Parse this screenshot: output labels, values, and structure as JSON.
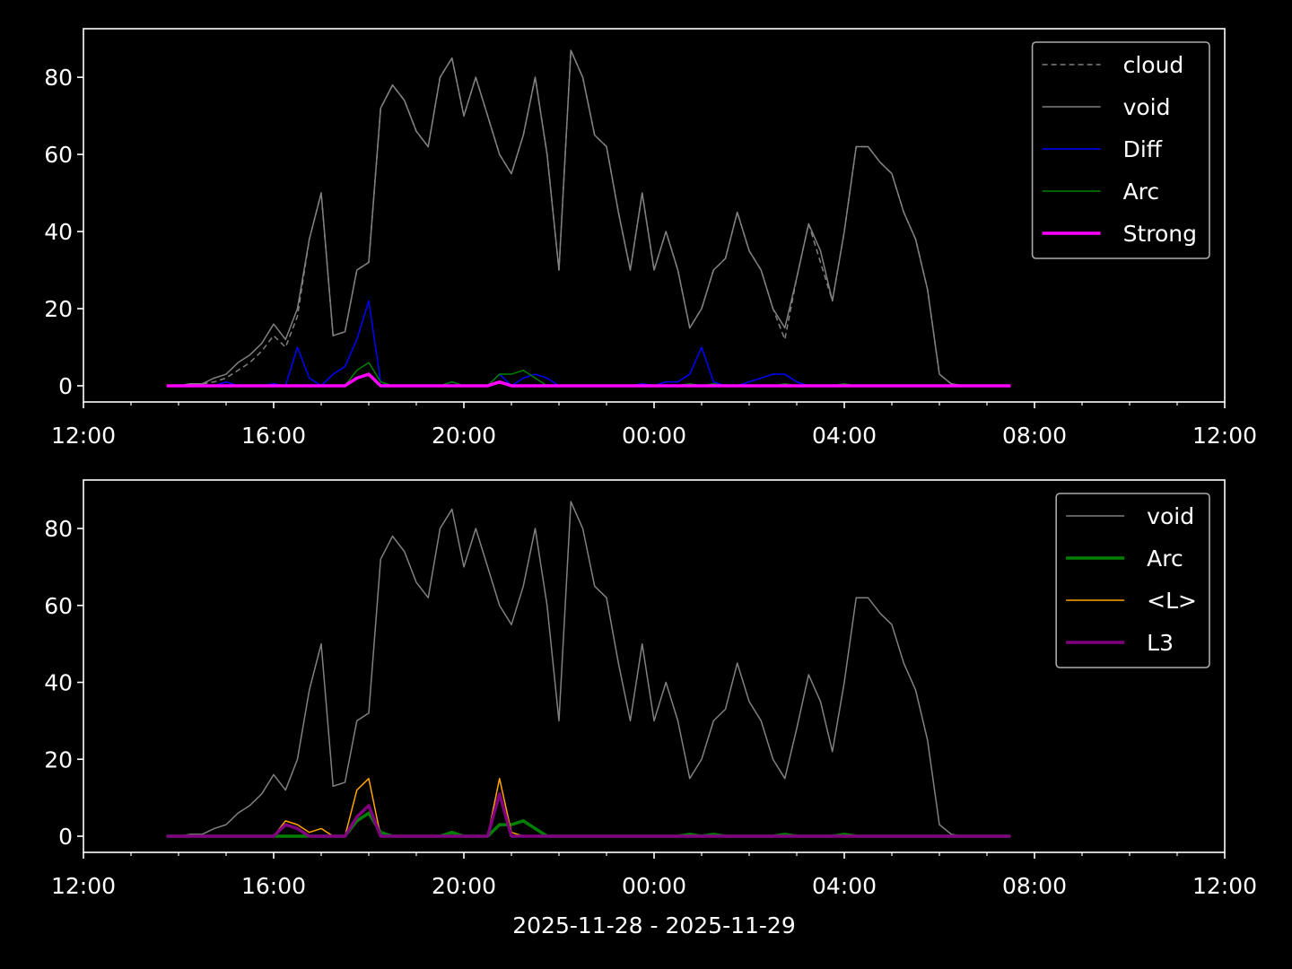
{
  "chart_data": [
    {
      "type": "line",
      "x": [
        1.75,
        2,
        2.25,
        2.5,
        2.75,
        3,
        3.25,
        3.5,
        3.75,
        4,
        4.25,
        4.5,
        4.75,
        5,
        5.25,
        5.5,
        5.75,
        6,
        6.25,
        6.5,
        6.75,
        7,
        7.25,
        7.5,
        7.75,
        8,
        8.25,
        8.5,
        8.75,
        9,
        9.25,
        9.5,
        9.75,
        10,
        10.25,
        10.5,
        10.75,
        11,
        11.25,
        11.5,
        11.75,
        12,
        12.25,
        12.5,
        12.75,
        13,
        13.25,
        13.5,
        13.75,
        14,
        14.25,
        14.5,
        14.75,
        15,
        15.25,
        15.5,
        15.75,
        16,
        16.25,
        16.5,
        16.75,
        17,
        17.25,
        17.5,
        17.75,
        18,
        18.25,
        18.5,
        18.75,
        19,
        19.25,
        19.5
      ],
      "xlim": [
        0,
        24
      ],
      "xticks": [
        {
          "value": 0,
          "label": "12:00"
        },
        {
          "value": 4,
          "label": "16:00"
        },
        {
          "value": 8,
          "label": "20:00"
        },
        {
          "value": 12,
          "label": "00:00"
        },
        {
          "value": 16,
          "label": "04:00"
        },
        {
          "value": 20,
          "label": "08:00"
        },
        {
          "value": 24,
          "label": "12:00"
        }
      ],
      "xminorticks": [
        1,
        2,
        3,
        5,
        6,
        7,
        9,
        10,
        11,
        13,
        14,
        15,
        17,
        18,
        19,
        21,
        22,
        23
      ],
      "ylim": [
        -4.2,
        92.6
      ],
      "yticks": [
        0,
        20,
        40,
        60,
        80
      ],
      "legend": "upper right",
      "series": [
        {
          "name": "cloud",
          "color": "#808080",
          "style": "dashed",
          "linewidth": 1.5,
          "values": [
            0,
            0,
            0.5,
            0.5,
            1,
            2,
            4,
            6,
            9,
            13,
            10,
            18,
            38,
            50,
            13,
            14,
            30,
            32,
            72,
            78,
            74,
            66,
            62,
            80,
            85,
            70,
            80,
            70,
            60,
            55,
            65,
            80,
            60,
            30,
            87,
            80,
            65,
            62,
            45,
            30,
            50,
            30,
            40,
            30,
            15,
            20,
            30,
            33,
            45,
            35,
            30,
            20,
            12,
            28,
            42,
            32,
            22,
            40,
            62,
            62,
            58,
            55,
            45,
            38,
            25,
            3,
            0.5,
            0,
            0,
            0,
            0,
            0
          ]
        },
        {
          "name": "void",
          "color": "#808080",
          "style": "solid",
          "linewidth": 1.5,
          "values": [
            0,
            0,
            0.5,
            0.5,
            2,
            3,
            6,
            8,
            11,
            16,
            12,
            20,
            38,
            50,
            13,
            14,
            30,
            32,
            72,
            78,
            74,
            66,
            62,
            80,
            85,
            70,
            80,
            70,
            60,
            55,
            65,
            80,
            60,
            30,
            87,
            80,
            65,
            62,
            45,
            30,
            50,
            30,
            40,
            30,
            15,
            20,
            30,
            33,
            45,
            35,
            30,
            20,
            15,
            28,
            42,
            35,
            22,
            40,
            62,
            62,
            58,
            55,
            45,
            38,
            25,
            3,
            0.5,
            0,
            0,
            0,
            0,
            0
          ]
        },
        {
          "name": "Diff",
          "color": "#0000ff",
          "style": "solid",
          "linewidth": 1.5,
          "values": [
            0,
            0,
            0,
            0,
            0,
            1,
            0,
            0,
            0,
            0.5,
            0,
            10,
            2,
            0,
            3,
            5,
            12,
            22,
            1,
            0,
            0,
            0,
            0,
            0,
            1,
            0,
            0,
            0,
            3,
            0,
            2,
            3,
            2,
            0,
            0,
            0,
            0,
            0,
            0,
            0,
            0.5,
            0,
            1,
            1,
            3,
            10,
            1,
            0,
            0,
            1,
            2,
            3,
            3,
            1,
            0,
            0,
            0,
            0,
            0,
            0,
            0,
            0,
            0,
            0,
            0,
            0,
            0,
            0,
            0,
            0,
            0,
            0
          ]
        },
        {
          "name": "Arc",
          "color": "#008000",
          "style": "solid",
          "linewidth": 1.5,
          "values": [
            0,
            0,
            0,
            0,
            0,
            0,
            0,
            0,
            0,
            0,
            0,
            0,
            0,
            0,
            0,
            0,
            4,
            6,
            1,
            0,
            0,
            0,
            0,
            0,
            1,
            0,
            0,
            0,
            3,
            3,
            4,
            2,
            0,
            0,
            0,
            0,
            0,
            0,
            0,
            0,
            0,
            0,
            0,
            0,
            0.5,
            0,
            0.5,
            0,
            0,
            0,
            0,
            0,
            0.5,
            0,
            0,
            0,
            0,
            0.5,
            0,
            0,
            0,
            0,
            0,
            0,
            0,
            0,
            0,
            0,
            0,
            0,
            0,
            0
          ]
        },
        {
          "name": "Strong",
          "color": "#ff00ff",
          "style": "solid",
          "linewidth": 3.5,
          "values": [
            0,
            0,
            0,
            0,
            0,
            0,
            0,
            0,
            0,
            0,
            0,
            0,
            0,
            0,
            0,
            0,
            2,
            3,
            0,
            0,
            0,
            0,
            0,
            0,
            0,
            0,
            0,
            0,
            1,
            0,
            0,
            0,
            0,
            0,
            0,
            0,
            0,
            0,
            0,
            0,
            0,
            0,
            0,
            0,
            0,
            0,
            0,
            0,
            0,
            0,
            0,
            0,
            0,
            0,
            0,
            0,
            0,
            0,
            0,
            0,
            0,
            0,
            0,
            0,
            0,
            0,
            0,
            0,
            0,
            0,
            0,
            0
          ]
        }
      ]
    },
    {
      "type": "line",
      "x": [
        1.75,
        2,
        2.25,
        2.5,
        2.75,
        3,
        3.25,
        3.5,
        3.75,
        4,
        4.25,
        4.5,
        4.75,
        5,
        5.25,
        5.5,
        5.75,
        6,
        6.25,
        6.5,
        6.75,
        7,
        7.25,
        7.5,
        7.75,
        8,
        8.25,
        8.5,
        8.75,
        9,
        9.25,
        9.5,
        9.75,
        10,
        10.25,
        10.5,
        10.75,
        11,
        11.25,
        11.5,
        11.75,
        12,
        12.25,
        12.5,
        12.75,
        13,
        13.25,
        13.5,
        13.75,
        14,
        14.25,
        14.5,
        14.75,
        15,
        15.25,
        15.5,
        15.75,
        16,
        16.25,
        16.5,
        16.75,
        17,
        17.25,
        17.5,
        17.75,
        18,
        18.25,
        18.5,
        18.75,
        19,
        19.25,
        19.5
      ],
      "xlim": [
        0,
        24
      ],
      "xticks": [
        {
          "value": 0,
          "label": "12:00"
        },
        {
          "value": 4,
          "label": "16:00"
        },
        {
          "value": 8,
          "label": "20:00"
        },
        {
          "value": 12,
          "label": "00:00"
        },
        {
          "value": 16,
          "label": "04:00"
        },
        {
          "value": 20,
          "label": "08:00"
        },
        {
          "value": 24,
          "label": "12:00"
        }
      ],
      "xminorticks": [
        1,
        2,
        3,
        5,
        6,
        7,
        9,
        10,
        11,
        13,
        14,
        15,
        17,
        18,
        19,
        21,
        22,
        23
      ],
      "ylim": [
        -4.2,
        92.6
      ],
      "yticks": [
        0,
        20,
        40,
        60,
        80
      ],
      "x_label": "2025-11-28 - 2025-11-29",
      "legend": "upper right",
      "series": [
        {
          "name": "void",
          "color": "#808080",
          "style": "solid",
          "linewidth": 1.5,
          "values": [
            0,
            0,
            0.5,
            0.5,
            2,
            3,
            6,
            8,
            11,
            16,
            12,
            20,
            38,
            50,
            13,
            14,
            30,
            32,
            72,
            78,
            74,
            66,
            62,
            80,
            85,
            70,
            80,
            70,
            60,
            55,
            65,
            80,
            60,
            30,
            87,
            80,
            65,
            62,
            45,
            30,
            50,
            30,
            40,
            30,
            15,
            20,
            30,
            33,
            45,
            35,
            30,
            20,
            15,
            28,
            42,
            35,
            22,
            40,
            62,
            62,
            58,
            55,
            45,
            38,
            25,
            3,
            0.5,
            0,
            0,
            0,
            0,
            0
          ]
        },
        {
          "name": "Arc",
          "color": "#008000",
          "style": "solid",
          "linewidth": 3.5,
          "values": [
            0,
            0,
            0,
            0,
            0,
            0,
            0,
            0,
            0,
            0,
            0,
            0,
            0,
            0,
            0,
            0,
            4,
            6,
            1,
            0,
            0,
            0,
            0,
            0,
            1,
            0,
            0,
            0,
            3,
            3,
            4,
            2,
            0,
            0,
            0,
            0,
            0,
            0,
            0,
            0,
            0,
            0,
            0,
            0,
            0.5,
            0,
            0.5,
            0,
            0,
            0,
            0,
            0,
            0.5,
            0,
            0,
            0,
            0,
            0.5,
            0,
            0,
            0,
            0,
            0,
            0,
            0,
            0,
            0,
            0,
            0,
            0,
            0,
            0
          ]
        },
        {
          "name": "<L>",
          "color": "#ffa500",
          "style": "solid",
          "linewidth": 1.5,
          "values": [
            0,
            0,
            0,
            0,
            0,
            0,
            0,
            0,
            0,
            0,
            4,
            3,
            1,
            2,
            0,
            0,
            12,
            15,
            0,
            0,
            0,
            0,
            0,
            0,
            0,
            0,
            0,
            0,
            15,
            1,
            0,
            0,
            0,
            0,
            0,
            0,
            0,
            0,
            0,
            0,
            0,
            0,
            0,
            0,
            0,
            0,
            0,
            0,
            0,
            0,
            0,
            0,
            0,
            0,
            0,
            0,
            0,
            0,
            0,
            0,
            0,
            0,
            0,
            0,
            0,
            0,
            0,
            0,
            0,
            0,
            0,
            0
          ]
        },
        {
          "name": "L3",
          "color": "#800080",
          "style": "solid",
          "linewidth": 3.5,
          "values": [
            0,
            0,
            0,
            0,
            0,
            0,
            0,
            0,
            0,
            0,
            3,
            2,
            0,
            0,
            0,
            0,
            5,
            8,
            0,
            0,
            0,
            0,
            0,
            0,
            0,
            0,
            0,
            0,
            11,
            0,
            0,
            0,
            0,
            0,
            0,
            0,
            0,
            0,
            0,
            0,
            0,
            0,
            0,
            0,
            0,
            0,
            0,
            0,
            0,
            0,
            0,
            0,
            0,
            0,
            0,
            0,
            0,
            0,
            0,
            0,
            0,
            0,
            0,
            0,
            0,
            0,
            0,
            0,
            0,
            0,
            0,
            0
          ]
        }
      ]
    }
  ]
}
